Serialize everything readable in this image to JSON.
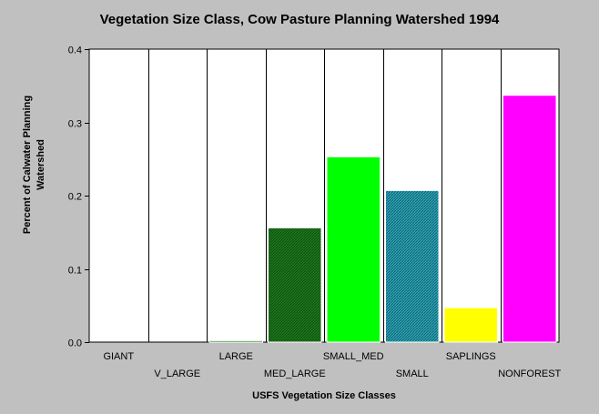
{
  "chart_data": {
    "type": "bar",
    "title": "Vegetation Size Class, Cow Pasture Planning Watershed 1994",
    "xlabel": "USFS Vegetation Size Classes",
    "ylabel": "Percent of Calwater Planning Watershed",
    "ylabel_lines": [
      "Percent of Calwater Planning",
      "Watershed"
    ],
    "categories": [
      "GIANT",
      "V_LARGE",
      "LARGE",
      "MED_LARGE",
      "SMALL_MED",
      "SMALL",
      "SAPLINGS",
      "NONFOREST"
    ],
    "values": [
      0.0,
      0.0,
      0.002,
      0.156,
      0.253,
      0.207,
      0.047,
      0.337
    ],
    "bar_colors": [
      "#000000",
      "#000000",
      "#006400",
      "#1e7a1e",
      "#00ff00",
      "#1f9fb0",
      "#ffff00",
      "#ff00ff"
    ],
    "ylim": [
      0,
      0.4
    ],
    "yticks": [
      "0.0",
      "0.1",
      "0.2",
      "0.3",
      "0.4"
    ],
    "grid": "vertical",
    "background": "#ffffff",
    "page_background": "#c0c0c0"
  }
}
